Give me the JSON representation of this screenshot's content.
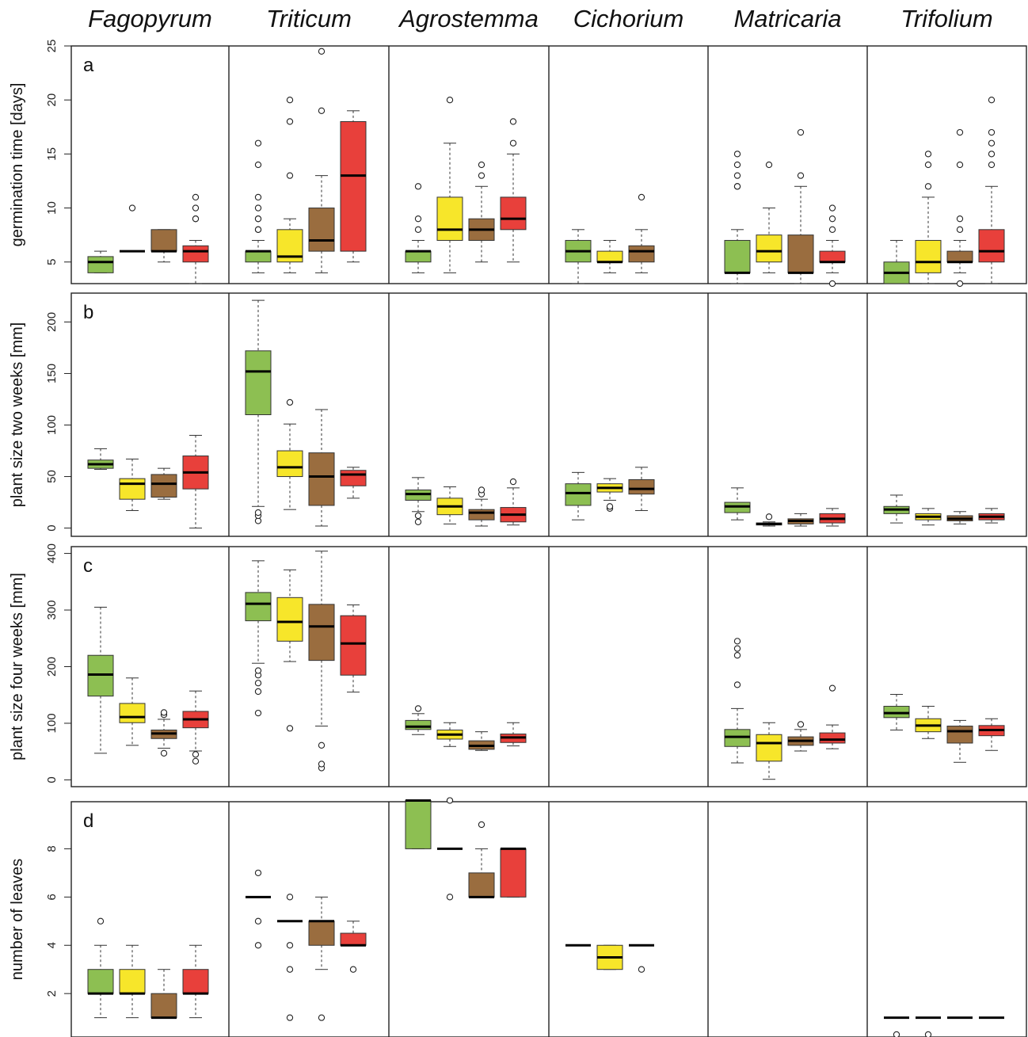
{
  "chart_data": {
    "type": "box",
    "species": [
      "Fagopyrum",
      "Triticum",
      "Agrostemma",
      "Cichorium",
      "Matricaria",
      "Trifolium"
    ],
    "group_colors": [
      "#8dbf52",
      "#f7e62a",
      "#9a6d3f",
      "#e8403b"
    ],
    "legend": "none",
    "grid": false,
    "panels": [
      {
        "letter": "a",
        "ylabel": "germination time [days]",
        "ylim": [
          3,
          25
        ],
        "yticks": [
          5,
          10,
          15,
          20,
          25
        ],
        "data": [
          [
            {
              "lo": 4,
              "q1": 4,
              "med": 5,
              "q3": 5.5,
              "hi": 6,
              "out": []
            },
            {
              "lo": 6,
              "q1": 6,
              "med": 6,
              "q3": 6,
              "hi": 6,
              "out": [
                10
              ]
            },
            {
              "lo": 5,
              "q1": 6,
              "med": 6,
              "q3": 8,
              "hi": 8,
              "out": []
            },
            {
              "lo": 3,
              "q1": 5,
              "med": 6,
              "q3": 6.5,
              "hi": 7,
              "out": [
                9,
                9,
                10,
                11
              ]
            }
          ],
          [
            {
              "lo": 4,
              "q1": 5,
              "med": 6,
              "q3": 6,
              "hi": 7,
              "out": [
                8,
                8,
                9,
                9,
                10,
                11,
                14,
                16
              ]
            },
            {
              "lo": 4,
              "q1": 5,
              "med": 5.5,
              "q3": 8,
              "hi": 9,
              "out": [
                13,
                18,
                20
              ]
            },
            {
              "lo": 4,
              "q1": 6,
              "med": 7,
              "q3": 10,
              "hi": 13,
              "out": [
                19,
                24.5
              ]
            },
            {
              "lo": 5,
              "q1": 6,
              "med": 13,
              "q3": 18,
              "hi": 19,
              "out": []
            }
          ],
          [
            {
              "lo": 4,
              "q1": 5,
              "med": 6,
              "q3": 6,
              "hi": 7,
              "out": [
                8,
                9,
                12
              ]
            },
            {
              "lo": 4,
              "q1": 7,
              "med": 8,
              "q3": 11,
              "hi": 16,
              "out": [
                20
              ]
            },
            {
              "lo": 5,
              "q1": 7,
              "med": 8,
              "q3": 9,
              "hi": 12,
              "out": [
                13,
                14
              ]
            },
            {
              "lo": 5,
              "q1": 8,
              "med": 9,
              "q3": 11,
              "hi": 15,
              "out": [
                16,
                18
              ]
            }
          ],
          [
            {
              "lo": 3,
              "q1": 5,
              "med": 6,
              "q3": 7,
              "hi": 8,
              "out": []
            },
            {
              "lo": 4,
              "q1": 5,
              "med": 5,
              "q3": 6,
              "hi": 7,
              "out": []
            },
            {
              "lo": 4,
              "q1": 5,
              "med": 6,
              "q3": 6.5,
              "hi": 8,
              "out": [
                11
              ]
            },
            null
          ],
          [
            {
              "lo": 3,
              "q1": 4,
              "med": 4,
              "q3": 7,
              "hi": 8,
              "out": [
                12,
                12,
                13,
                14,
                15
              ]
            },
            {
              "lo": 4,
              "q1": 5,
              "med": 6,
              "q3": 7.5,
              "hi": 10,
              "out": [
                14
              ]
            },
            {
              "lo": 3,
              "q1": 4,
              "med": 4,
              "q3": 7.5,
              "hi": 12,
              "out": [
                13,
                17
              ]
            },
            {
              "lo": 4,
              "q1": 5,
              "med": 5,
              "q3": 6,
              "hi": 7,
              "out": [
                3,
                8,
                9,
                10
              ]
            }
          ],
          [
            {
              "lo": 3,
              "q1": 3,
              "med": 4,
              "q3": 5,
              "hi": 7,
              "out": []
            },
            {
              "lo": 3,
              "q1": 4,
              "med": 5,
              "q3": 7,
              "hi": 11,
              "out": [
                12,
                14,
                15
              ]
            },
            {
              "lo": 4,
              "q1": 5,
              "med": 5,
              "q3": 6,
              "hi": 7,
              "out": [
                3,
                8,
                9,
                14,
                17
              ]
            },
            {
              "lo": 3,
              "q1": 5,
              "med": 6,
              "q3": 8,
              "hi": 12,
              "out": [
                14,
                15,
                16,
                17,
                20
              ]
            }
          ]
        ]
      },
      {
        "letter": "b",
        "ylabel": "plant size two weeks [mm]",
        "ylim": [
          -8,
          228
        ],
        "yticks": [
          0,
          50,
          100,
          150,
          200
        ],
        "data": [
          [
            {
              "lo": 57,
              "q1": 58,
              "med": 62,
              "q3": 66,
              "hi": 77,
              "out": []
            },
            {
              "lo": 17,
              "q1": 28,
              "med": 43,
              "q3": 48,
              "hi": 67,
              "out": []
            },
            {
              "lo": 28,
              "q1": 30,
              "med": 43,
              "q3": 52,
              "hi": 58,
              "out": []
            },
            {
              "lo": 0,
              "q1": 38,
              "med": 54,
              "q3": 70,
              "hi": 90,
              "out": []
            }
          ],
          [
            {
              "lo": 21,
              "q1": 110,
              "med": 152,
              "q3": 172,
              "hi": 221,
              "out": [
                7,
                12,
                15
              ]
            },
            {
              "lo": 18,
              "q1": 50,
              "med": 59,
              "q3": 75,
              "hi": 101,
              "out": [
                122
              ]
            },
            {
              "lo": 2,
              "q1": 22,
              "med": 50,
              "q3": 73,
              "hi": 115,
              "out": []
            },
            {
              "lo": 29,
              "q1": 41,
              "med": 52,
              "q3": 56,
              "hi": 59,
              "out": []
            }
          ],
          [
            {
              "lo": 16,
              "q1": 27,
              "med": 33,
              "q3": 37,
              "hi": 49,
              "out": [
                6,
                12
              ]
            },
            {
              "lo": 4,
              "q1": 13,
              "med": 21,
              "q3": 29,
              "hi": 40,
              "out": []
            },
            {
              "lo": 2,
              "q1": 8,
              "med": 15,
              "q3": 18,
              "hi": 28,
              "out": [
                33,
                37
              ]
            },
            {
              "lo": 3,
              "q1": 6,
              "med": 13,
              "q3": 20,
              "hi": 39,
              "out": [
                45
              ]
            }
          ],
          [
            {
              "lo": 8,
              "q1": 22,
              "med": 34,
              "q3": 43,
              "hi": 54,
              "out": []
            },
            {
              "lo": 27,
              "q1": 35,
              "med": 39,
              "q3": 43,
              "hi": 48,
              "out": [
                19,
                21
              ]
            },
            {
              "lo": 17,
              "q1": 33,
              "med": 38,
              "q3": 47,
              "hi": 59,
              "out": []
            },
            null
          ],
          [
            {
              "lo": 8,
              "q1": 15,
              "med": 21,
              "q3": 25,
              "hi": 39,
              "out": []
            },
            {
              "lo": 2,
              "q1": 3,
              "med": 4,
              "q3": 5,
              "hi": 6,
              "out": [
                11
              ]
            },
            {
              "lo": 2,
              "q1": 4,
              "med": 7,
              "q3": 9,
              "hi": 14,
              "out": []
            },
            {
              "lo": 2,
              "q1": 5,
              "med": 9,
              "q3": 14,
              "hi": 19,
              "out": []
            }
          ],
          [
            {
              "lo": 5,
              "q1": 14,
              "med": 18,
              "q3": 21,
              "hi": 32,
              "out": []
            },
            {
              "lo": 3,
              "q1": 8,
              "med": 11,
              "q3": 14,
              "hi": 19,
              "out": []
            },
            {
              "lo": 4,
              "q1": 7,
              "med": 9,
              "q3": 12,
              "hi": 16,
              "out": []
            },
            {
              "lo": 5,
              "q1": 8,
              "med": 11,
              "q3": 14,
              "hi": 19,
              "out": []
            }
          ]
        ]
      },
      {
        "letter": "c",
        "ylabel": "plant size four weeks [mm]",
        "ylim": [
          -12,
          412
        ],
        "yticks": [
          0,
          100,
          200,
          300,
          400
        ],
        "data": [
          [
            {
              "lo": 47,
              "q1": 148,
              "med": 186,
              "q3": 220,
              "hi": 305,
              "out": []
            },
            {
              "lo": 61,
              "q1": 101,
              "med": 111,
              "q3": 135,
              "hi": 180,
              "out": []
            },
            {
              "lo": 56,
              "q1": 73,
              "med": 82,
              "q3": 88,
              "hi": 107,
              "out": [
                47,
                115,
                119
              ]
            },
            {
              "lo": 51,
              "q1": 92,
              "med": 107,
              "q3": 121,
              "hi": 157,
              "out": [
                33,
                45
              ]
            }
          ],
          [
            {
              "lo": 206,
              "q1": 281,
              "med": 311,
              "q3": 331,
              "hi": 387,
              "out": [
                118,
                156,
                171,
                185,
                193
              ]
            },
            {
              "lo": 209,
              "q1": 245,
              "med": 279,
              "q3": 322,
              "hi": 371,
              "out": [
                91
              ]
            },
            {
              "lo": 95,
              "q1": 211,
              "med": 271,
              "q3": 310,
              "hi": 404,
              "out": [
                21,
                28,
                61
              ]
            },
            {
              "lo": 155,
              "q1": 185,
              "med": 241,
              "q3": 290,
              "hi": 309,
              "out": []
            }
          ],
          [
            {
              "lo": 80,
              "q1": 89,
              "med": 94,
              "q3": 105,
              "hi": 117,
              "out": [
                126
              ]
            },
            {
              "lo": 59,
              "q1": 72,
              "med": 80,
              "q3": 88,
              "hi": 101,
              "out": []
            },
            {
              "lo": 52,
              "q1": 54,
              "med": 60,
              "q3": 69,
              "hi": 85,
              "out": []
            },
            {
              "lo": 60,
              "q1": 66,
              "med": 75,
              "q3": 81,
              "hi": 101,
              "out": []
            }
          ],
          [
            null,
            null,
            null,
            null
          ],
          [
            {
              "lo": 30,
              "q1": 59,
              "med": 76,
              "q3": 89,
              "hi": 126,
              "out": [
                168,
                220,
                232,
                245
              ]
            },
            {
              "lo": 1,
              "q1": 33,
              "med": 65,
              "q3": 80,
              "hi": 101,
              "out": []
            },
            {
              "lo": 51,
              "q1": 61,
              "med": 69,
              "q3": 76,
              "hi": 89,
              "out": [
                98
              ]
            },
            {
              "lo": 55,
              "q1": 65,
              "med": 71,
              "q3": 83,
              "hi": 97,
              "out": [
                162
              ]
            }
          ],
          [
            {
              "lo": 88,
              "q1": 110,
              "med": 118,
              "q3": 130,
              "hi": 151,
              "out": []
            },
            {
              "lo": 73,
              "q1": 85,
              "med": 96,
              "q3": 108,
              "hi": 130,
              "out": []
            },
            {
              "lo": 31,
              "q1": 65,
              "med": 86,
              "q3": 95,
              "hi": 105,
              "out": []
            },
            {
              "lo": 52,
              "q1": 78,
              "med": 88,
              "q3": 96,
              "hi": 108,
              "out": []
            }
          ]
        ]
      },
      {
        "letter": "d",
        "ylabel": "number of leaves",
        "ylim": [
          0.2,
          9.95
        ],
        "yticks": [
          2,
          4,
          6,
          8
        ],
        "data": [
          [
            {
              "lo": 1,
              "q1": 2,
              "med": 2,
              "q3": 3,
              "hi": 4,
              "out": [
                5
              ]
            },
            {
              "lo": 1,
              "q1": 2,
              "med": 2,
              "q3": 3,
              "hi": 4,
              "out": []
            },
            {
              "lo": 1,
              "q1": 1,
              "med": 1,
              "q3": 2,
              "hi": 3,
              "out": []
            },
            {
              "lo": 1,
              "q1": 2,
              "med": 2,
              "q3": 3,
              "hi": 4,
              "out": []
            }
          ],
          [
            {
              "lo": 6,
              "q1": 6,
              "med": 6,
              "q3": 6,
              "hi": 6,
              "out": [
                4,
                5,
                7
              ]
            },
            {
              "lo": 5,
              "q1": 5,
              "med": 5,
              "q3": 5,
              "hi": 5,
              "out": [
                1,
                3,
                4,
                6
              ]
            },
            {
              "lo": 3,
              "q1": 4,
              "med": 5,
              "q3": 5,
              "hi": 6,
              "out": [
                1
              ]
            },
            {
              "lo": 4,
              "q1": 4,
              "med": 4,
              "q3": 4.5,
              "hi": 5,
              "out": [
                3
              ]
            }
          ],
          [
            {
              "lo": 8,
              "q1": 8,
              "med": 10,
              "q3": 10,
              "hi": 10,
              "out": []
            },
            {
              "lo": 8,
              "q1": 8,
              "med": 8,
              "q3": 8,
              "hi": 8,
              "out": [
                6,
                10
              ]
            },
            {
              "lo": 6,
              "q1": 6,
              "med": 6,
              "q3": 7,
              "hi": 8,
              "out": [
                9
              ]
            },
            {
              "lo": 6,
              "q1": 6,
              "med": 8,
              "q3": 8,
              "hi": 8,
              "out": []
            }
          ],
          [
            {
              "lo": 4,
              "q1": 4,
              "med": 4,
              "q3": 4,
              "hi": 4,
              "out": []
            },
            {
              "lo": 3,
              "q1": 3,
              "med": 3.5,
              "q3": 4,
              "hi": 4,
              "out": []
            },
            {
              "lo": 4,
              "q1": 4,
              "med": 4,
              "q3": 4,
              "hi": 4,
              "out": [
                3
              ]
            },
            null
          ],
          [
            null,
            null,
            null,
            null
          ],
          [
            {
              "lo": 1,
              "q1": 1,
              "med": 1,
              "q3": 1,
              "hi": 1,
              "out": [
                0.3
              ]
            },
            {
              "lo": 1,
              "q1": 1,
              "med": 1,
              "q3": 1,
              "hi": 1,
              "out": [
                0.3
              ]
            },
            {
              "lo": 1,
              "q1": 1,
              "med": 1,
              "q3": 1,
              "hi": 1,
              "out": []
            },
            {
              "lo": 1,
              "q1": 1,
              "med": 1,
              "q3": 1,
              "hi": 1,
              "out": []
            }
          ]
        ]
      }
    ]
  }
}
